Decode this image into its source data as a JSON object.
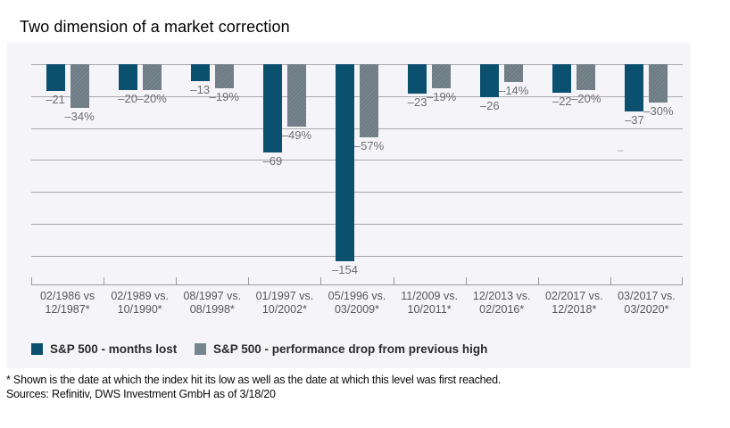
{
  "chart_data": {
    "type": "bar",
    "title": "Two dimension of a market correction",
    "categories": [
      "02/1986 vs\n12/1987*",
      "02/1989 vs.\n10/1990*",
      "08/1997 vs.\n08/1998*",
      "01/1997 vs.\n10/2002*",
      "05/1996 vs.\n03/2009*",
      "11/2009 vs.\n10/2011*",
      "12/2013 vs.\n02/2016*",
      "02/2017 vs.\n12/2018*",
      "03/2017 vs.\n03/2020*"
    ],
    "series": [
      {
        "name": "S&P 500 - months lost",
        "unit": "months",
        "color": "#0b506f",
        "label_suffix": "",
        "values": [
          -21,
          -20,
          -13,
          -69,
          -154,
          -23,
          -26,
          -22,
          -37
        ]
      },
      {
        "name": "S&P 500 - performance drop from previous high",
        "unit": "percent",
        "color": "#76848d",
        "label_suffix": "%",
        "values": [
          -34,
          -20,
          -19,
          -49,
          -57,
          -19,
          -14,
          -20,
          -30
        ]
      }
    ],
    "value_labels": {
      "months": [
        "–21",
        "–20",
        "–13",
        "–69",
        "–154",
        "–23",
        "–26",
        "–22",
        "–37"
      ],
      "percent": [
        "–34%",
        "–20%",
        "–19%",
        "–49%",
        "–57%",
        "–19%",
        "–14%",
        "–20%",
        "–30%"
      ]
    },
    "ylim": [
      -160,
      0
    ],
    "gridline_values": [
      0,
      -25,
      -50,
      -75,
      -100,
      -125,
      -150
    ],
    "grid": true,
    "legend_position": "bottom",
    "minus_glyph": "–"
  },
  "colors": {
    "months_bar": "#0b506f",
    "percent_bar": "#76848d",
    "panel_background": "#f5f5f9",
    "gridline": "#a7a7ad",
    "value_label_text": "#6e6e6e",
    "axis_label_text": "#57575b"
  },
  "legend": {
    "items": [
      {
        "label": "S&P 500 - months lost",
        "color": "#0b506f"
      },
      {
        "label": "S&P 500 - performance drop from previous high",
        "color": "#76848d"
      }
    ]
  },
  "annotations": {
    "stray_dash": "–"
  },
  "footnote": {
    "asterisk_note": "* Shown is the date at which the index hit its low as well as the date at which this level was first reached.",
    "sources": "Sources: Refinitiv, DWS Investment GmbH as of 3/18/20"
  }
}
